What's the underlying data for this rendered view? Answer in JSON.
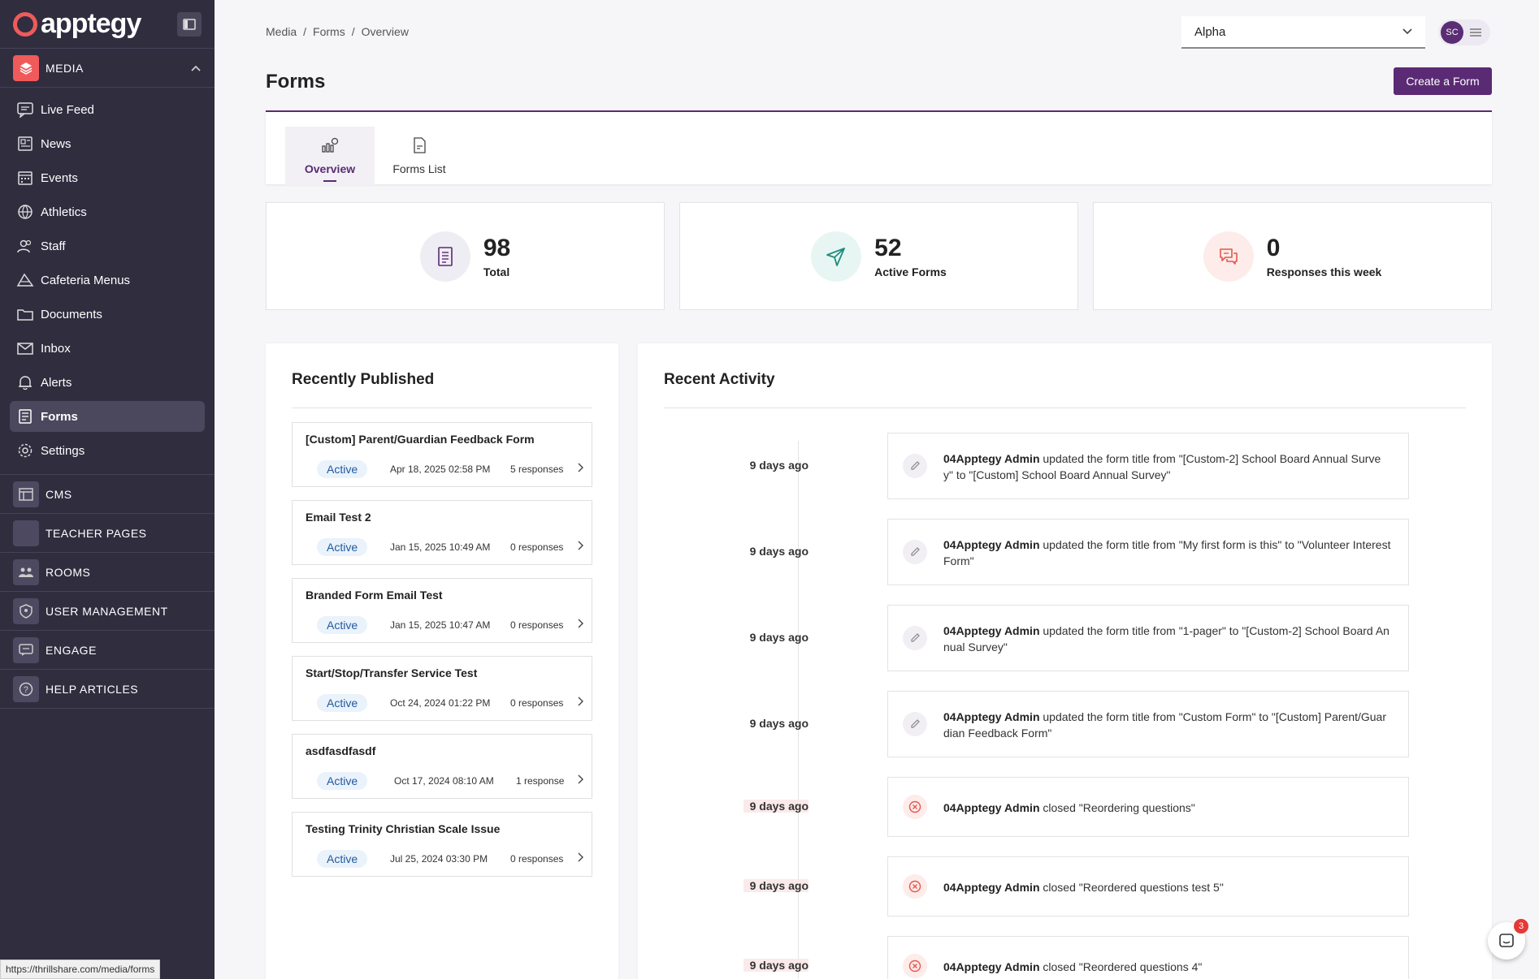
{
  "sidebar": {
    "brand": "apptegy",
    "sections": {
      "media": "MEDIA",
      "cms": "CMS",
      "teacher_pages": "TEACHER PAGES",
      "rooms": "ROOMS",
      "user_management": "USER MANAGEMENT",
      "engage": "ENGAGE",
      "help_articles": "HELP ARTICLES"
    },
    "media_items": [
      {
        "label": "Live Feed",
        "icon": "live-feed-icon"
      },
      {
        "label": "News",
        "icon": "news-icon"
      },
      {
        "label": "Events",
        "icon": "events-icon"
      },
      {
        "label": "Athletics",
        "icon": "athletics-icon"
      },
      {
        "label": "Staff",
        "icon": "staff-icon"
      },
      {
        "label": "Cafeteria Menus",
        "icon": "cafeteria-icon"
      },
      {
        "label": "Documents",
        "icon": "folder-icon"
      },
      {
        "label": "Inbox",
        "icon": "mail-icon"
      },
      {
        "label": "Alerts",
        "icon": "bell-icon"
      },
      {
        "label": "Forms",
        "icon": "forms-icon",
        "active": true
      },
      {
        "label": "Settings",
        "icon": "gear-icon"
      }
    ]
  },
  "status_url": "https://thrillshare.com/media/forms",
  "breadcrumb": [
    "Media",
    "Forms",
    "Overview"
  ],
  "school_select": {
    "value": "Alpha"
  },
  "user": {
    "initials": "SC"
  },
  "page_title": "Forms",
  "create_button": "Create a Form",
  "tabs": [
    {
      "label": "Overview",
      "active": true
    },
    {
      "label": "Forms List",
      "active": false
    }
  ],
  "stats": [
    {
      "value": "98",
      "label": "Total",
      "icon": "document-icon"
    },
    {
      "value": "52",
      "label": "Active Forms",
      "icon": "send-icon"
    },
    {
      "value": "0",
      "label": "Responses this week",
      "icon": "chat-bubbles-icon"
    }
  ],
  "recently_published": {
    "title": "Recently Published",
    "items": [
      {
        "name": "[Custom] Parent/Guardian Feedback Form",
        "status": "Active",
        "date": "Apr 18, 2025 02:58 PM",
        "responses": "5 responses"
      },
      {
        "name": "Email Test 2",
        "status": "Active",
        "date": "Jan 15, 2025 10:49 AM",
        "responses": "0 responses"
      },
      {
        "name": "Branded Form Email Test",
        "status": "Active",
        "date": "Jan 15, 2025 10:47 AM",
        "responses": "0 responses"
      },
      {
        "name": "Start/Stop/Transfer Service Test",
        "status": "Active",
        "date": "Oct 24, 2024 01:22 PM",
        "responses": "0 responses"
      },
      {
        "name": "asdfasdfasdf",
        "status": "Active",
        "date": "Oct 17, 2024 08:10 AM",
        "responses": "1 response"
      },
      {
        "name": "Testing Trinity Christian Scale Issue",
        "status": "Active",
        "date": "Jul 25, 2024 03:30 PM",
        "responses": "0 responses"
      }
    ]
  },
  "recent_activity": {
    "title": "Recent Activity",
    "items": [
      {
        "time": "9 days ago",
        "actor": "04Apptegy Admin",
        "text": " updated the form title from \"[Custom-2] School Board Annual Surve y\" to \"[Custom] School Board Annual Survey\"",
        "type": "edit"
      },
      {
        "time": "9 days ago",
        "actor": "04Apptegy Admin",
        "text": " updated the form title from \"My first form is this\" to \"Volunteer Interest Form\"",
        "type": "edit"
      },
      {
        "time": "9 days ago",
        "actor": "04Apptegy Admin",
        "text": " updated the form title from \"1-pager\" to \"[Custom-2] School Board An nual Survey\"",
        "type": "edit"
      },
      {
        "time": "9 days ago",
        "actor": "04Apptegy Admin",
        "text": " updated the form title from \"Custom Form\" to \"[Custom] Parent/Guar dian Feedback Form\"",
        "type": "edit"
      },
      {
        "time": "9 days ago",
        "actor": "04Apptegy Admin",
        "text": " closed \"Reordering questions\"",
        "type": "close"
      },
      {
        "time": "9 days ago",
        "actor": "04Apptegy Admin",
        "text": " closed \"Reordered questions test 5\"",
        "type": "close"
      },
      {
        "time": "9 days ago",
        "actor": "04Apptegy Admin",
        "text": " closed \"Reordered questions 4\"",
        "type": "close"
      }
    ]
  },
  "chat": {
    "unread": "3"
  },
  "colors": {
    "brand": "#5b2a74",
    "sidebar": "#302d3f",
    "accent_red": "#f05a5a"
  }
}
